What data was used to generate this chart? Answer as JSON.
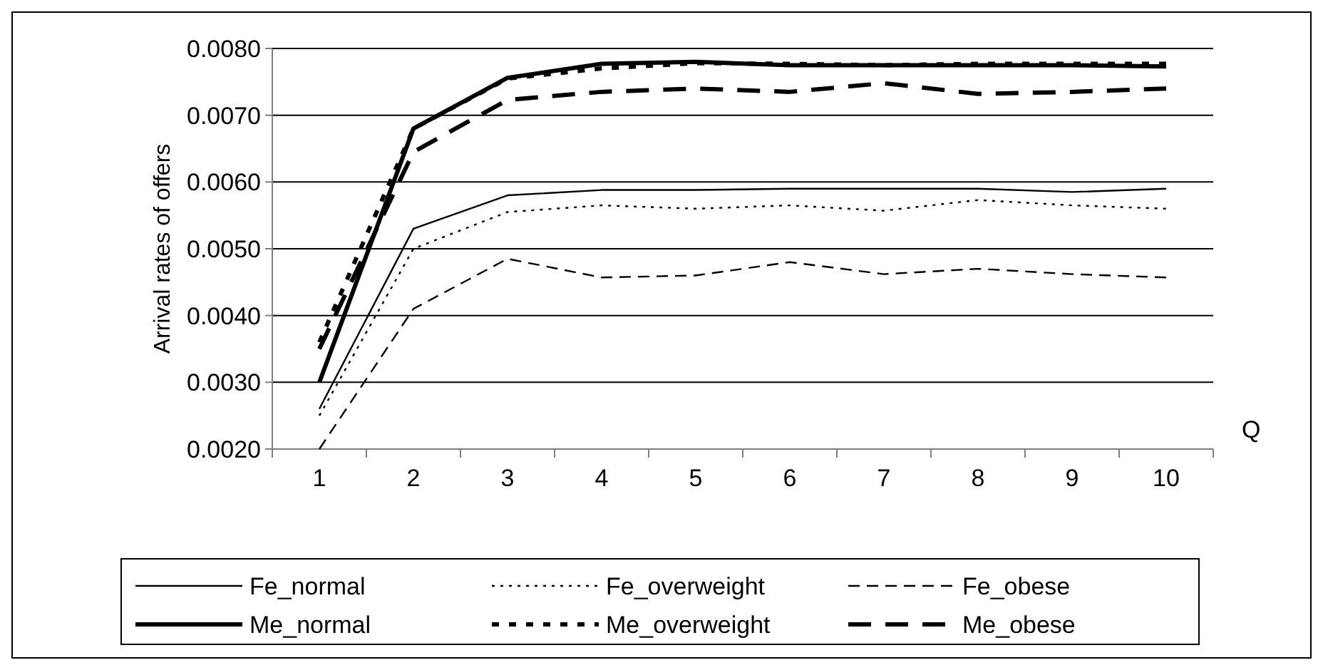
{
  "chart_data": {
    "type": "line",
    "xlabel": "Q",
    "ylabel": "Arrival rates of offers",
    "categories": [
      "1",
      "2",
      "3",
      "4",
      "5",
      "6",
      "7",
      "8",
      "9",
      "10"
    ],
    "ylim": [
      0.002,
      0.008
    ],
    "yticks": [
      {
        "value": 0.002,
        "label": "0.0020"
      },
      {
        "value": 0.003,
        "label": "0.0030"
      },
      {
        "value": 0.004,
        "label": "0.0040"
      },
      {
        "value": 0.005,
        "label": "0.0050"
      },
      {
        "value": 0.006,
        "label": "0.0060"
      },
      {
        "value": 0.007,
        "label": "0.0070"
      },
      {
        "value": 0.008,
        "label": "0.0080"
      }
    ],
    "grid": "y",
    "legend": "bottom",
    "series": [
      {
        "name": "Fe_normal",
        "color": "#000000",
        "line_style": "solid",
        "values": [
          0.0026,
          0.0053,
          0.0058,
          0.00588,
          0.00588,
          0.0059,
          0.0059,
          0.0059,
          0.00585,
          0.0059
        ]
      },
      {
        "name": "Fe_overweight",
        "color": "#000000",
        "line_style": "dotted",
        "values": [
          0.0025,
          0.005,
          0.00555,
          0.00565,
          0.0056,
          0.00565,
          0.00557,
          0.00573,
          0.00565,
          0.0056
        ]
      },
      {
        "name": "Fe_obese",
        "color": "#000000",
        "line_style": "dashed",
        "values": [
          0.002,
          0.0041,
          0.00485,
          0.00457,
          0.0046,
          0.0048,
          0.00462,
          0.0047,
          0.00462,
          0.00457
        ]
      },
      {
        "name": "Me_normal",
        "color": "#000000",
        "line_style": "solid",
        "values": [
          0.003,
          0.0068,
          0.00756,
          0.00777,
          0.0078,
          0.00775,
          0.00775,
          0.00775,
          0.00775,
          0.00773
        ]
      },
      {
        "name": "Me_overweight",
        "color": "#000000",
        "line_style": "dotted",
        "values": [
          0.0036,
          0.0068,
          0.00755,
          0.0077,
          0.00778,
          0.00777,
          0.00775,
          0.00777,
          0.00777,
          0.00777
        ]
      },
      {
        "name": "Me_obese",
        "color": "#000000",
        "line_style": "dashed",
        "values": [
          0.0035,
          0.00645,
          0.00723,
          0.00735,
          0.0074,
          0.00735,
          0.00748,
          0.00732,
          0.00735,
          0.0074
        ]
      }
    ]
  }
}
